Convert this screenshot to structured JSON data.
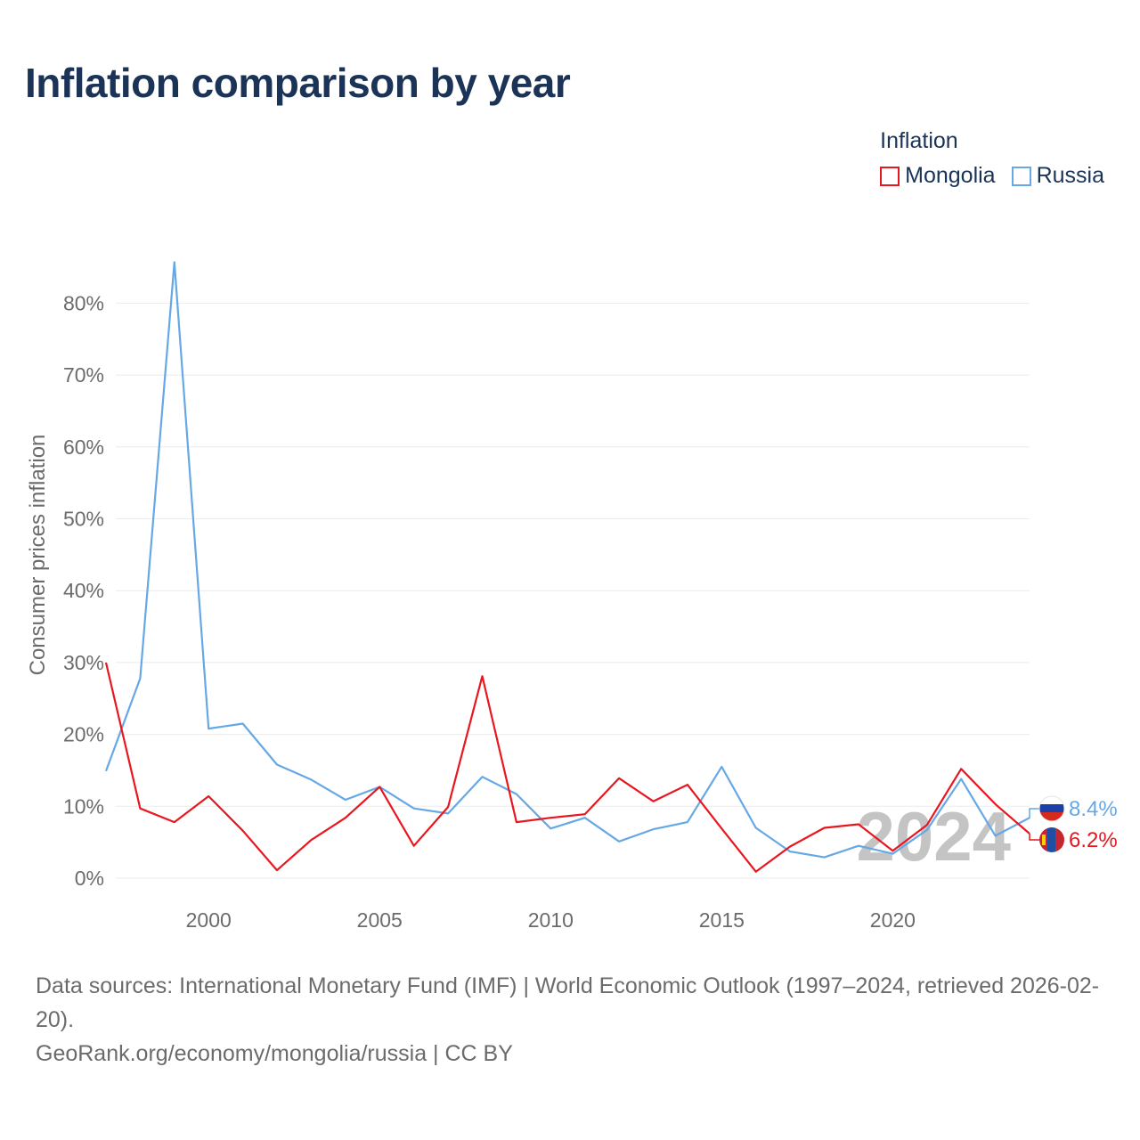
{
  "title": "Inflation comparison by year",
  "legend": {
    "title": "Inflation",
    "items": [
      {
        "label": "Mongolia",
        "color": "#e8171f"
      },
      {
        "label": "Russia",
        "color": "#66a8e6"
      }
    ]
  },
  "footer": {
    "sources": "Data sources: International Monetary Fund (IMF) | World Economic Outlook (1997–2024, retrieved 2026-02-20).",
    "credit": "GeoRank.org/economy/mongolia/russia | CC BY"
  },
  "chart_data": {
    "type": "line",
    "ylabel": "Consumer prices inflation",
    "xlabel": "",
    "xlim": [
      1997,
      2024
    ],
    "ylim": [
      0,
      85
    ],
    "y_ticks": [
      0,
      10,
      20,
      30,
      40,
      50,
      60,
      70,
      80
    ],
    "y_tick_labels": [
      "0%",
      "10%",
      "20%",
      "30%",
      "40%",
      "50%",
      "60%",
      "70%",
      "80%"
    ],
    "x_ticks": [
      2000,
      2005,
      2010,
      2015,
      2020
    ],
    "x_tick_labels": [
      "2000",
      "2005",
      "2010",
      "2015",
      "2020"
    ],
    "current_year_label": "2024",
    "x": [
      1997,
      1998,
      1999,
      2000,
      2001,
      2002,
      2003,
      2004,
      2005,
      2006,
      2007,
      2008,
      2009,
      2010,
      2011,
      2012,
      2013,
      2014,
      2015,
      2016,
      2017,
      2018,
      2019,
      2020,
      2021,
      2022,
      2023,
      2024
    ],
    "series": [
      {
        "name": "Mongolia",
        "color": "#e8171f",
        "end_label": "6.2%",
        "values": [
          30.0,
          9.7,
          7.8,
          11.4,
          6.6,
          1.1,
          5.3,
          8.4,
          12.7,
          4.5,
          9.9,
          28.1,
          7.8,
          8.4,
          8.9,
          13.9,
          10.7,
          13.0,
          6.9,
          0.9,
          4.4,
          7.0,
          7.5,
          3.8,
          7.4,
          15.2,
          10.3,
          6.2
        ]
      },
      {
        "name": "Russia",
        "color": "#66a8e6",
        "end_label": "8.4%",
        "values": [
          14.9,
          27.8,
          85.7,
          20.8,
          21.5,
          15.8,
          13.7,
          10.9,
          12.7,
          9.7,
          9.0,
          14.1,
          11.7,
          6.9,
          8.4,
          5.1,
          6.8,
          7.8,
          15.5,
          7.0,
          3.7,
          2.9,
          4.5,
          3.4,
          6.7,
          13.8,
          5.9,
          8.4
        ]
      }
    ]
  }
}
